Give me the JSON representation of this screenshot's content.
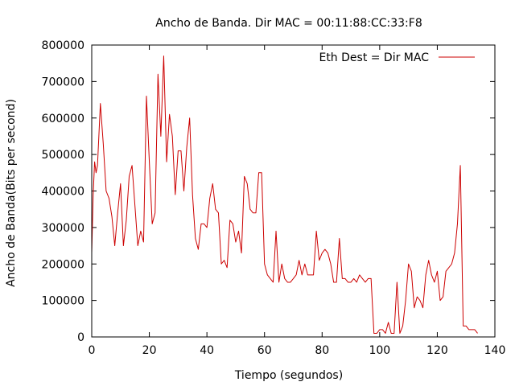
{
  "chart_data": {
    "type": "line",
    "title": "Ancho de Banda. Dir MAC = 00:11:88:CC:33:F8",
    "xlabel": "Tiempo (segundos)",
    "ylabel": "Ancho de Banda(Bits per second)",
    "xlim": [
      0,
      140
    ],
    "ylim": [
      0,
      800000
    ],
    "x_ticks": [
      0,
      20,
      40,
      60,
      80,
      100,
      120,
      140
    ],
    "x_tick_labels": [
      "0",
      "20",
      "40",
      "60",
      "80",
      "100",
      "120",
      "140"
    ],
    "y_ticks": [
      0,
      100000,
      200000,
      300000,
      400000,
      500000,
      600000,
      700000,
      800000
    ],
    "y_tick_labels": [
      "0",
      "100000",
      "200000",
      "300000",
      "400000",
      "500000",
      "600000",
      "700000",
      "800000"
    ],
    "grid": false,
    "legend_position": "top-right",
    "series": [
      {
        "name": "Eth Dest = Dir MAC",
        "color": "#cc0000",
        "x": [
          0,
          0.5,
          1,
          1.5,
          2,
          3,
          4,
          5,
          6,
          7,
          8,
          9,
          10,
          11,
          12,
          13,
          14,
          15,
          16,
          17,
          18,
          19,
          20,
          21,
          22,
          23,
          24,
          25,
          26,
          27,
          28,
          29,
          30,
          31,
          32,
          33,
          34,
          35,
          36,
          37,
          38,
          39,
          40,
          41,
          42,
          43,
          44,
          45,
          46,
          47,
          48,
          49,
          50,
          51,
          52,
          53,
          54,
          55,
          56,
          57,
          58,
          59,
          60,
          61,
          62,
          63,
          64,
          65,
          66,
          67,
          68,
          69,
          70,
          71,
          72,
          73,
          74,
          75,
          76,
          77,
          78,
          79,
          80,
          81,
          82,
          83,
          84,
          85,
          86,
          87,
          88,
          89,
          90,
          91,
          92,
          93,
          94,
          95,
          96,
          97,
          98,
          99,
          100,
          101,
          102,
          103,
          104,
          105,
          106,
          107,
          108,
          109,
          110,
          111,
          112,
          113,
          114,
          115,
          116,
          117,
          118,
          119,
          120,
          121,
          122,
          123,
          124,
          125,
          126,
          127,
          128,
          129,
          130,
          131,
          132,
          133,
          134
        ],
        "values": [
          230000,
          390000,
          480000,
          450000,
          470000,
          640000,
          530000,
          400000,
          380000,
          330000,
          250000,
          340000,
          420000,
          250000,
          320000,
          440000,
          470000,
          360000,
          250000,
          290000,
          260000,
          660000,
          480000,
          310000,
          340000,
          720000,
          550000,
          770000,
          480000,
          610000,
          550000,
          390000,
          510000,
          510000,
          400000,
          520000,
          600000,
          390000,
          270000,
          240000,
          310000,
          310000,
          300000,
          380000,
          420000,
          350000,
          340000,
          200000,
          210000,
          190000,
          320000,
          310000,
          260000,
          290000,
          230000,
          440000,
          420000,
          350000,
          340000,
          340000,
          450000,
          450000,
          200000,
          170000,
          160000,
          150000,
          290000,
          150000,
          200000,
          160000,
          150000,
          150000,
          160000,
          170000,
          210000,
          170000,
          200000,
          170000,
          170000,
          170000,
          290000,
          210000,
          230000,
          240000,
          230000,
          200000,
          150000,
          150000,
          270000,
          160000,
          160000,
          150000,
          150000,
          160000,
          150000,
          170000,
          160000,
          150000,
          160000,
          160000,
          10000,
          10000,
          20000,
          20000,
          10000,
          40000,
          10000,
          10000,
          150000,
          10000,
          30000,
          100000,
          200000,
          180000,
          80000,
          110000,
          100000,
          80000,
          170000,
          210000,
          170000,
          150000,
          180000,
          100000,
          110000,
          180000,
          190000,
          200000,
          230000,
          310000,
          470000,
          30000,
          30000,
          20000,
          20000,
          20000,
          10000
        ]
      }
    ]
  }
}
